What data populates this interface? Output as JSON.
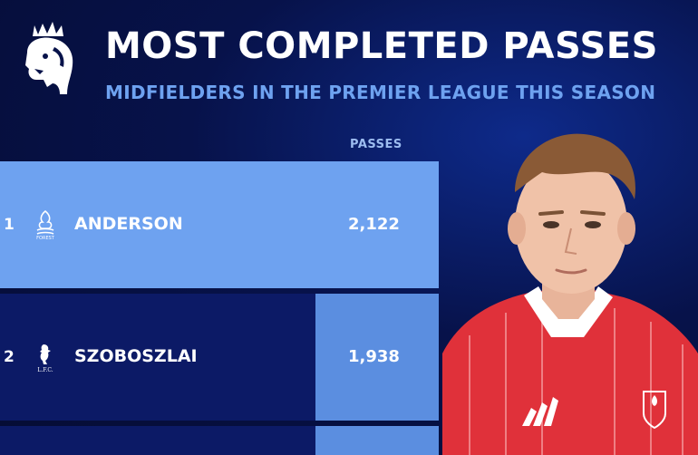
{
  "header": {
    "logo_icon": "premier-league-lion-icon",
    "title": "MOST COMPLETED PASSES",
    "subtitle": "MIDFIELDERS IN THE PREMIER LEAGUE THIS SEASON"
  },
  "colors": {
    "background": "#07124a",
    "bar_top": "#6ea2f0",
    "bar_other": "#5b8ee0",
    "row_dark": "#0c1a66",
    "accent_text": "#6ea2f0",
    "kit_red": "#e0313a"
  },
  "chart_data": {
    "type": "bar",
    "title": "MOST COMPLETED PASSES",
    "subtitle": "MIDFIELDERS IN THE PREMIER LEAGUE THIS SEASON",
    "value_header": "PASSES",
    "rows": [
      {
        "rank": "1",
        "name": "ANDERSON",
        "club_icon": "nottingham-forest-crest-icon",
        "value": 2122,
        "value_label": "2,122"
      },
      {
        "rank": "2",
        "name": "SZOBOSZLAI",
        "club_icon": "liverpool-crest-icon",
        "value": 1938,
        "value_label": "1,938"
      }
    ]
  }
}
